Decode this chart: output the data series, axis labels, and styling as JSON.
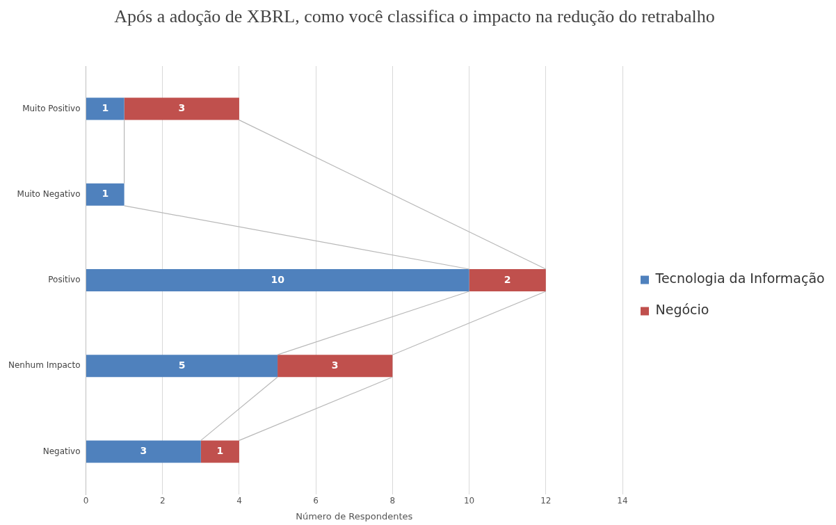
{
  "chart_data": {
    "type": "bar",
    "orientation": "horizontal",
    "stacked": true,
    "title": "Após  a adoção de XBRL, como você classifica o impacto na redução do retrabalho",
    "xlabel": "Número de Respondentes",
    "categories": [
      "Muito Positivo",
      "Muito Negativo",
      "Positivo",
      "Nenhum Impacto",
      "Negativo"
    ],
    "series": [
      {
        "name": "Tecnologia da Informação",
        "color": "#4f81bd",
        "values": [
          1,
          1,
          10,
          5,
          3
        ]
      },
      {
        "name": "Negócio",
        "color": "#c0504d",
        "values": [
          3,
          null,
          2,
          3,
          1
        ]
      }
    ],
    "xlim": [
      0,
      14
    ],
    "xticks": [
      0,
      2,
      4,
      6,
      8,
      10,
      12,
      14
    ],
    "grid": "x",
    "legend": "right",
    "data_labels": true
  }
}
